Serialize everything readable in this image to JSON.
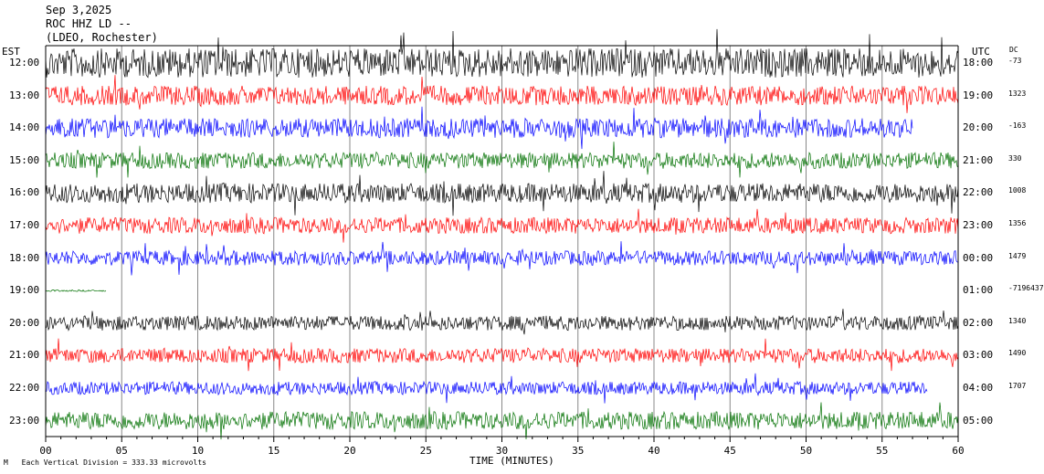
{
  "header": {
    "date": "Sep 3,2025",
    "station": "ROC HHZ LD --",
    "network": "(LDEO, Rochester)"
  },
  "labels": {
    "left_tz": "EST",
    "right_tz": "UTC",
    "dc_header": "DC",
    "xlabel": "TIME (MINUTES)",
    "footer": "Each Vertical Division =  333.33 microvolts",
    "footer_mark": "M"
  },
  "colors": [
    "#000000",
    "#ff0000",
    "#0000ff",
    "#007000"
  ],
  "chart_data": {
    "type": "line",
    "xlabel": "TIME (MINUTES)",
    "xlim": [
      0,
      60
    ],
    "xticks": [
      "00",
      "05",
      "10",
      "15",
      "20",
      "25",
      "30",
      "35",
      "40",
      "45",
      "50",
      "55",
      "60"
    ],
    "grid": "vertical lines every 5 minutes",
    "series": [
      {
        "est": "12:00",
        "utc": "18:00",
        "dc": "-73",
        "color": "black",
        "amplitude": 0.9,
        "end_minute": 60
      },
      {
        "est": "13:00",
        "utc": "19:00",
        "dc": "1323",
        "color": "red",
        "amplitude": 0.6,
        "end_minute": 60
      },
      {
        "est": "14:00",
        "utc": "20:00",
        "dc": "-163",
        "color": "blue",
        "amplitude": 0.6,
        "end_minute": 57
      },
      {
        "est": "15:00",
        "utc": "21:00",
        "dc": "330",
        "color": "green",
        "amplitude": 0.5,
        "end_minute": 60
      },
      {
        "est": "16:00",
        "utc": "22:00",
        "dc": "1008",
        "color": "black",
        "amplitude": 0.6,
        "end_minute": 60
      },
      {
        "est": "17:00",
        "utc": "23:00",
        "dc": "1356",
        "color": "red",
        "amplitude": 0.5,
        "end_minute": 60
      },
      {
        "est": "18:00",
        "utc": "00:00",
        "dc": "1479",
        "color": "blue",
        "amplitude": 0.45,
        "end_minute": 60
      },
      {
        "est": "19:00",
        "utc": "01:00",
        "dc": "-7196437",
        "color": "green",
        "amplitude": 0.05,
        "end_minute": 4
      },
      {
        "est": "20:00",
        "utc": "02:00",
        "dc": "1340",
        "color": "black",
        "amplitude": 0.45,
        "end_minute": 60
      },
      {
        "est": "21:00",
        "utc": "03:00",
        "dc": "1490",
        "color": "red",
        "amplitude": 0.45,
        "end_minute": 60
      },
      {
        "est": "22:00",
        "utc": "04:00",
        "dc": "1707",
        "color": "blue",
        "amplitude": 0.4,
        "end_minute": 58
      },
      {
        "est": "23:00",
        "utc": "05:00",
        "dc": "",
        "color": "green",
        "amplitude": 0.55,
        "end_minute": 60
      }
    ]
  }
}
